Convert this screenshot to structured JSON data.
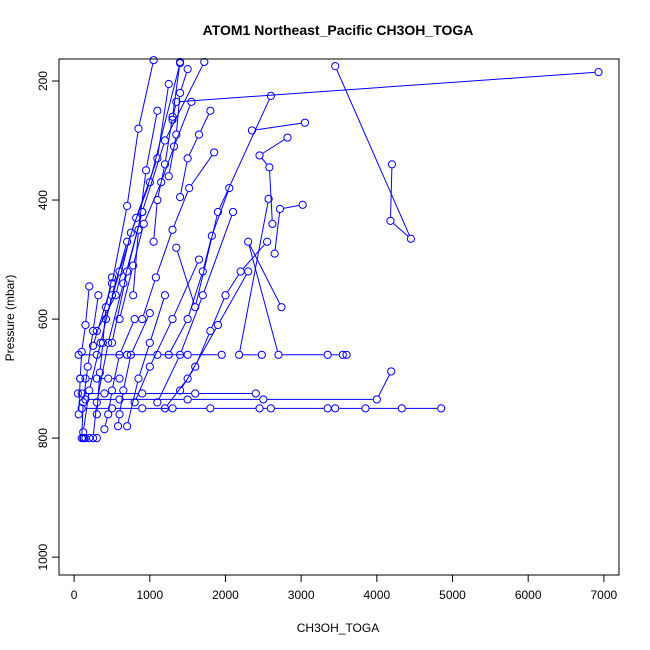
{
  "chart_data": {
    "type": "line",
    "title": "ATOM1 Northeast_Pacific CH3OH_TOGA",
    "xlabel": "CH3OH_TOGA",
    "ylabel": "Pressure (mbar)",
    "xlim": [
      -200,
      7200
    ],
    "ylim": [
      1030,
      163
    ],
    "y_reversed": true,
    "x_ticks": [
      0,
      1000,
      2000,
      3000,
      4000,
      5000,
      6000,
      7000
    ],
    "y_ticks": [
      200,
      400,
      600,
      800,
      1000
    ],
    "grid": false,
    "legend": "none",
    "color": "#0000ff",
    "marker": "open-circle",
    "series": [
      {
        "x": [
          6930,
          1350,
          1300
        ],
        "y": [
          185,
          235,
          265
        ]
      },
      {
        "x": [
          3450,
          4450,
          4180,
          4200
        ],
        "y": [
          175,
          465,
          435,
          340
        ]
      },
      {
        "x": [
          3050,
          2350
        ],
        "y": [
          270,
          283
        ]
      },
      {
        "x": [
          2820,
          2450,
          2580,
          2620
        ],
        "y": [
          295,
          325,
          345,
          440
        ]
      },
      {
        "x": [
          3020,
          2720,
          2650
        ],
        "y": [
          408,
          415,
          490
        ]
      },
      {
        "x": [
          2570,
          2180,
          2480
        ],
        "y": [
          398,
          660,
          660
        ]
      },
      {
        "x": [
          2740,
          2300,
          2700,
          3350,
          3550,
          3600
        ],
        "y": [
          580,
          470,
          660,
          660,
          660,
          660
        ]
      },
      {
        "x": [
          2600,
          1900,
          1600,
          1350
        ],
        "y": [
          225,
          420,
          580,
          480
        ]
      },
      {
        "x": [
          1720,
          1200,
          900,
          700,
          500
        ],
        "y": [
          168,
          300,
          420,
          520,
          640
        ]
      },
      {
        "x": [
          1400,
          1000,
          750,
          550,
          300
        ],
        "y": [
          170,
          370,
          455,
          560,
          620
        ]
      },
      {
        "x": [
          1250,
          1100,
          820,
          600,
          420
        ],
        "y": [
          205,
          330,
          430,
          520,
          600
        ]
      },
      {
        "x": [
          1050,
          850,
          700,
          500,
          250
        ],
        "y": [
          165,
          280,
          410,
          540,
          645
        ]
      },
      {
        "x": [
          1550,
          1320,
          1150,
          920,
          780,
          600
        ],
        "y": [
          235,
          310,
          370,
          440,
          510,
          600
        ]
      },
      {
        "x": [
          1850,
          1520,
          1300,
          1080,
          900
        ],
        "y": [
          320,
          380,
          450,
          530,
          600
        ]
      },
      {
        "x": [
          2050,
          1820,
          1700,
          1500,
          1250
        ],
        "y": [
          380,
          460,
          520,
          600,
          660
        ]
      },
      {
        "x": [
          2550,
          2200,
          2000,
          1800,
          1600,
          1400
        ],
        "y": [
          470,
          520,
          560,
          620,
          680,
          720
        ]
      },
      {
        "x": [
          4190,
          4000,
          2500,
          1500,
          600,
          150
        ],
        "y": [
          688,
          735,
          735,
          735,
          735,
          735
        ]
      },
      {
        "x": [
          4850,
          4330,
          3850,
          3450,
          3350,
          2600,
          2450,
          1800,
          1300,
          900,
          500,
          100
        ],
        "y": [
          750,
          750,
          750,
          750,
          750,
          750,
          750,
          750,
          750,
          750,
          750,
          750
        ]
      },
      {
        "x": [
          2400,
          1600,
          900,
          400,
          100,
          50
        ],
        "y": [
          725,
          725,
          725,
          725,
          725,
          725
        ]
      },
      {
        "x": [
          1950,
          1500,
          1100,
          700,
          300,
          60
        ],
        "y": [
          660,
          660,
          660,
          660,
          660,
          660
        ]
      },
      {
        "x": [
          600,
          450,
          300,
          150,
          80
        ],
        "y": [
          700,
          700,
          700,
          700,
          700
        ]
      },
      {
        "x": [
          200,
          150,
          100,
          80,
          60
        ],
        "y": [
          545,
          610,
          655,
          700,
          760
        ]
      },
      {
        "x": [
          320,
          250,
          180,
          120,
          100
        ],
        "y": [
          560,
          620,
          680,
          740,
          800
        ]
      },
      {
        "x": [
          700,
          500,
          350,
          200,
          120
        ],
        "y": [
          470,
          560,
          640,
          720,
          790
        ]
      },
      {
        "x": [
          900,
          650,
          450,
          300,
          250
        ],
        "y": [
          420,
          540,
          640,
          740,
          800
        ]
      },
      {
        "x": [
          800,
          600,
          500,
          450,
          400
        ],
        "y": [
          600,
          660,
          720,
          760,
          785
        ]
      },
      {
        "x": [
          1000,
          750,
          650,
          600,
          580
        ],
        "y": [
          590,
          660,
          720,
          760,
          780
        ]
      },
      {
        "x": [
          1200,
          1000,
          850,
          700
        ],
        "y": [
          560,
          640,
          700,
          780
        ]
      },
      {
        "x": [
          1650,
          1300,
          1000,
          800
        ],
        "y": [
          500,
          600,
          680,
          740
        ]
      },
      {
        "x": [
          2100,
          1700,
          1400,
          1100
        ],
        "y": [
          420,
          560,
          660,
          740
        ]
      },
      {
        "x": [
          2300,
          1900,
          1500,
          1200
        ],
        "y": [
          520,
          610,
          700,
          750
        ]
      },
      {
        "x": [
          300,
          200,
          150,
          130,
          120
        ],
        "y": [
          800,
          800,
          800,
          800,
          800
        ]
      },
      {
        "x": [
          1400,
          1300,
          1200,
          1100,
          1050
        ],
        "y": [
          168,
          260,
          340,
          400,
          470
        ]
      },
      {
        "x": [
          1500,
          1400,
          1350,
          1250
        ],
        "y": [
          180,
          220,
          290,
          360
        ]
      },
      {
        "x": [
          1800,
          1650,
          1500,
          1400
        ],
        "y": [
          250,
          290,
          330,
          395
        ]
      },
      {
        "x": [
          1100,
          950,
          850,
          780
        ],
        "y": [
          250,
          350,
          450,
          560
        ]
      },
      {
        "x": [
          500,
          420,
          380,
          340,
          300
        ],
        "y": [
          530,
          580,
          640,
          690,
          760
        ]
      }
    ]
  }
}
